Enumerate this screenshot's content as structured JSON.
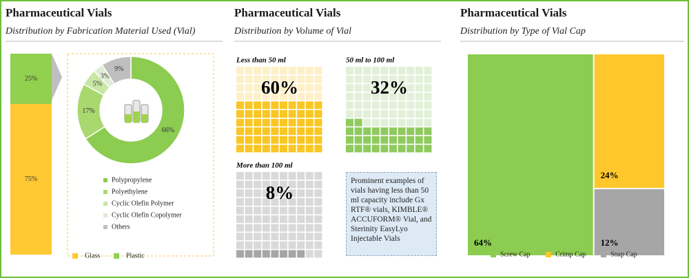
{
  "chart_data": [
    {
      "type": "stacked-bar",
      "title": "Pharmaceutical Vials",
      "subtitle": "Distribution by Fabrication Material Used (Vial)",
      "series": [
        {
          "name": "Glass",
          "color": "#ffc933",
          "values": [
            75
          ],
          "value_labels": [
            "75%"
          ]
        },
        {
          "name": "Plastic",
          "color": "#92d050",
          "values": [
            25
          ],
          "value_labels": [
            "25%"
          ]
        }
      ]
    },
    {
      "type": "pie",
      "categories": [
        "Polypropylene",
        "Polyethylene",
        "Cyclic Olefin Polymer",
        "Cyclic Olefin Copolymer",
        "Others"
      ],
      "values": [
        66,
        17,
        5,
        3,
        9
      ],
      "value_labels": [
        "66%",
        "17%",
        "5%",
        "3%",
        "9%"
      ],
      "colors": [
        "#8ccc50",
        "#a9d86e",
        "#c8e6a4",
        "#e0ecd3",
        "#bfbfbf"
      ]
    },
    {
      "type": "waffle",
      "title": "Pharmaceutical Vials",
      "subtitle": "Distribution by Volume of Vial",
      "categories": [
        "Less than 50 ml",
        "50 ml to 100 ml",
        "More than 100 ml"
      ],
      "values": [
        60,
        32,
        8
      ],
      "value_labels": [
        "60%",
        "32%",
        "8%"
      ],
      "colors": [
        "#f9c623",
        "#8fca5e",
        "#a6a6a6"
      ],
      "note": "Prominent examples of vials having less than 50 ml capacity include Gx RTF® vials, KIMBLE® ACCUFORM® Vial, and Sterinity EasyLyo Injectable Vials"
    },
    {
      "type": "treemap",
      "title": "Pharmaceutical Vials",
      "subtitle": "Distribution by Type of Vial Cap",
      "categories": [
        "Screw Cap",
        "Crimp Cap",
        "Snap Cap"
      ],
      "values": [
        64,
        24,
        12
      ],
      "value_labels": [
        "64%",
        "24%",
        "12%"
      ],
      "colors": [
        "#8ccc50",
        "#ffc72c",
        "#a6a6a6"
      ]
    }
  ]
}
